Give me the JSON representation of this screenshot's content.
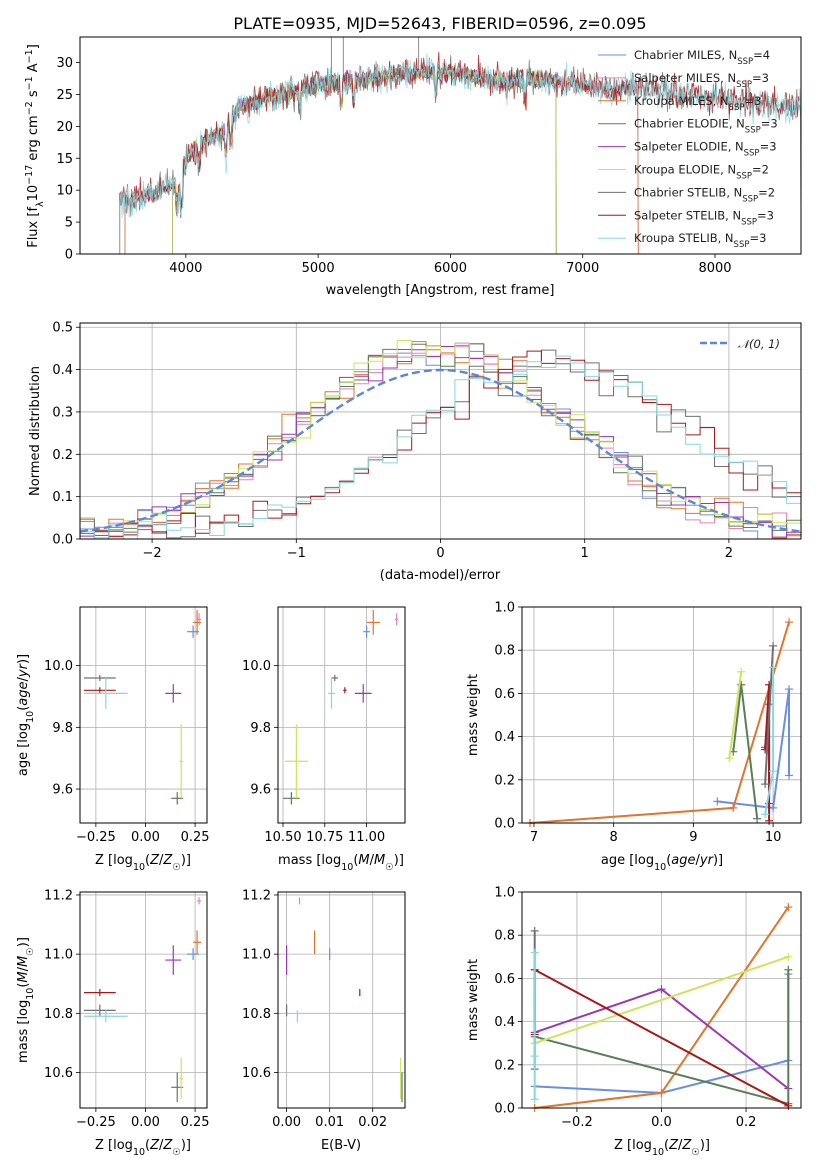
{
  "figure": {
    "title": "PLATE=0935, MJD=52643, FIBERID=0596, z=0.095"
  },
  "colors": {
    "Chabrier MILES": "#6a8fdc",
    "Salpeter MILES": "#e584b9",
    "Kroupa MILES": "#e0752c",
    "Chabrier ELODIE": "#5a7e57",
    "Salpeter ELODIE": "#9b37b0",
    "Kroupa ELODIE": "#cfe35a",
    "Chabrier STELIB": "#707070",
    "Salpeter STELIB": "#a81818",
    "Kroupa STELIB": "#84d8e0"
  },
  "chart_data": [
    {
      "id": "spectrum",
      "type": "line",
      "xlabel": "wavelength [Angstrom, rest frame]",
      "ylabel": "Flux [f_λ 10^-17 erg cm^-2 s^-1 A^-1]",
      "xlim": [
        3200,
        8650
      ],
      "ylim": [
        0,
        34
      ],
      "xticks": [
        "4000",
        "5000",
        "6000",
        "7000",
        "8000"
      ],
      "yticks": [
        "0",
        "5",
        "10",
        "15",
        "20",
        "25",
        "30"
      ],
      "grid": false,
      "legend_position": "upper-right",
      "continuum_knots": {
        "wavelength": [
          3500,
          3700,
          3900,
          3960,
          4000,
          4100,
          4200,
          4300,
          4400,
          4600,
          4800,
          5000,
          5200,
          5400,
          5600,
          5800,
          6000,
          6200,
          6400,
          6600,
          6800,
          7000,
          7200,
          7400,
          7800,
          8200,
          8500
        ],
        "flux": [
          8.5,
          9.0,
          11.0,
          10.0,
          15.0,
          17.0,
          18.5,
          19.0,
          23.0,
          24.5,
          25.5,
          26.5,
          27.0,
          27.5,
          28.0,
          28.5,
          28.5,
          27.5,
          27.0,
          27.5,
          27.0,
          26.5,
          25.5,
          26.0,
          25.0,
          24.0,
          23.0
        ]
      },
      "series": [
        {
          "name": "Chabrier MILES",
          "n_ssp": "4",
          "wave_range": [
            3540,
            7420
          ]
        },
        {
          "name": "Salpeter MILES",
          "n_ssp": "3",
          "wave_range": [
            3540,
            7420
          ]
        },
        {
          "name": "Kroupa MILES",
          "n_ssp": "3",
          "wave_range": [
            3540,
            7420
          ]
        },
        {
          "name": "Chabrier ELODIE",
          "n_ssp": "3",
          "wave_range": [
            3900,
            6800
          ]
        },
        {
          "name": "Salpeter ELODIE",
          "n_ssp": "3",
          "wave_range": [
            3900,
            6800
          ]
        },
        {
          "name": "Kroupa ELODIE",
          "n_ssp": "2",
          "wave_range": [
            3900,
            6800
          ]
        },
        {
          "name": "Chabrier STELIB",
          "n_ssp": "2",
          "wave_range": [
            3500,
            8650
          ]
        },
        {
          "name": "Salpeter STELIB",
          "n_ssp": "3",
          "wave_range": [
            3500,
            8650
          ]
        },
        {
          "name": "Kroupa STELIB",
          "n_ssp": "3",
          "wave_range": [
            3500,
            8650
          ]
        }
      ],
      "legend_entries": [
        {
          "name": "Chabrier MILES",
          "label": "Chabrier MILES, N",
          "sub": "SSP",
          "suffix": "=4"
        },
        {
          "name": "Salpeter MILES",
          "label": "Salpeter MILES, N",
          "sub": "SSP",
          "suffix": "=3"
        },
        {
          "name": "Kroupa MILES",
          "label": "Kroupa MILES, N",
          "sub": "SSP",
          "suffix": "=3"
        },
        {
          "name": "Chabrier ELODIE",
          "label": "Chabrier ELODIE, N",
          "sub": "SSP",
          "suffix": "=3"
        },
        {
          "name": "Salpeter ELODIE",
          "label": "Salpeter ELODIE, N",
          "sub": "SSP",
          "suffix": "=3"
        },
        {
          "name": "Kroupa ELODIE",
          "label": "Kroupa ELODIE, N",
          "sub": "SSP",
          "suffix": "=2"
        },
        {
          "name": "Chabrier STELIB",
          "label": "Chabrier STELIB, N",
          "sub": "SSP",
          "suffix": "=2"
        },
        {
          "name": "Salpeter STELIB",
          "label": "Salpeter STELIB, N",
          "sub": "SSP",
          "suffix": "=3"
        },
        {
          "name": "Kroupa STELIB",
          "label": "Kroupa STELIB, N",
          "sub": "SSP",
          "suffix": "=3"
        }
      ]
    },
    {
      "id": "residuals",
      "type": "histogram",
      "xlabel": "(data-model)/error",
      "ylabel": "Normed distribution",
      "xlim": [
        -2.5,
        2.5
      ],
      "ylim": [
        0,
        0.51
      ],
      "xticks": [
        "−2",
        "−1",
        "0",
        "1",
        "2"
      ],
      "yticks": [
        "0.0",
        "0.1",
        "0.2",
        "0.3",
        "0.4",
        "0.5"
      ],
      "grid": true,
      "legend": "𝒩(0, 1)",
      "bin_width": 0.1,
      "family_A": {
        "members": [
          "Chabrier MILES",
          "Salpeter MILES",
          "Kroupa MILES",
          "Chabrier ELODIE",
          "Salpeter ELODIE",
          "Kroupa ELODIE"
        ],
        "center": -0.02,
        "sigma": 0.92,
        "peak": 0.44
      },
      "family_B": {
        "members": [
          "Chabrier STELIB",
          "Salpeter STELIB",
          "Kroupa STELIB"
        ],
        "center": 0.78,
        "sigma": 0.95,
        "peak": 0.41
      }
    },
    {
      "id": "age_vs_Z",
      "type": "scatter",
      "xlabel": "Z [log10(Z/Z☉)]",
      "ylabel": "age [log10(age/yr)]",
      "xlim": [
        -0.33,
        0.31
      ],
      "ylim": [
        9.49,
        10.19
      ],
      "xticks": [
        "−0.25",
        "0.00",
        "0.25"
      ],
      "yticks": [
        "9.6",
        "9.8",
        "10.0"
      ]
    },
    {
      "id": "age_vs_mass",
      "type": "scatter",
      "xlabel": "mass [log10(M/M☉)]",
      "ylabel": "",
      "xlim": [
        10.47,
        11.23
      ],
      "ylim": [
        9.49,
        10.19
      ],
      "xticks": [
        "10.50",
        "10.75",
        "11.00"
      ],
      "yticks": [
        "9.6",
        "9.8",
        "10.0"
      ]
    },
    {
      "id": "mass_weight_vs_age",
      "type": "line",
      "xlabel": "age [log10(age/yr)]",
      "ylabel": "mass weight",
      "xlim": [
        6.85,
        10.35
      ],
      "ylim": [
        0,
        1.0
      ],
      "xticks": [
        "7",
        "8",
        "9",
        "10"
      ],
      "yticks": [
        "0.0",
        "0.2",
        "0.4",
        "0.6",
        "0.8",
        "1.0"
      ]
    },
    {
      "id": "mass_vs_Z",
      "type": "scatter",
      "xlabel": "Z [log10(Z/Z☉)]",
      "ylabel": "mass [log10(M/M☉)]",
      "xlim": [
        -0.33,
        0.31
      ],
      "ylim": [
        10.48,
        11.21
      ],
      "xticks": [
        "−0.25",
        "0.00",
        "0.25"
      ],
      "yticks": [
        "10.6",
        "10.8",
        "11.0",
        "11.2"
      ]
    },
    {
      "id": "mass_vs_EBV",
      "type": "scatter",
      "xlabel": "E(B-V)",
      "ylabel": "",
      "xlim": [
        -0.002,
        0.0275
      ],
      "ylim": [
        10.48,
        11.21
      ],
      "xticks": [
        "0.00",
        "0.01",
        "0.02"
      ],
      "yticks": [
        "10.6",
        "10.8",
        "11.0",
        "11.2"
      ]
    },
    {
      "id": "mass_weight_vs_Z",
      "type": "line",
      "xlabel": "Z [log10(Z/Z☉)]",
      "ylabel": "mass weight",
      "xlim": [
        -0.33,
        0.33
      ],
      "ylim": [
        0,
        1.0
      ],
      "xticks": [
        "−0.2",
        "0.0",
        "0.2"
      ],
      "yticks": [
        "0.0",
        "0.2",
        "0.4",
        "0.6",
        "0.8",
        "1.0"
      ]
    }
  ],
  "models": [
    {
      "name": "Chabrier MILES",
      "Z": [
        0.24,
        0.03
      ],
      "age": [
        10.11,
        0.02
      ],
      "mass": [
        11.0,
        0.02
      ],
      "ebv": 0.01
    },
    {
      "name": "Salpeter MILES",
      "Z": [
        0.27,
        0.01
      ],
      "age": [
        10.15,
        0.02
      ],
      "mass": [
        11.18,
        0.01
      ],
      "ebv": 0.003
    },
    {
      "name": "Kroupa MILES",
      "Z": [
        0.26,
        0.02
      ],
      "age": [
        10.14,
        0.04
      ],
      "mass": [
        11.04,
        0.04
      ],
      "ebv": 0.0065
    },
    {
      "name": "Chabrier ELODIE",
      "Z": [
        0.16,
        0.03
      ],
      "age": [
        9.57,
        0.02
      ],
      "mass": [
        10.55,
        0.05
      ],
      "ebv": 0.0268
    },
    {
      "name": "Salpeter ELODIE",
      "Z": [
        0.14,
        0.04
      ],
      "age": [
        9.91,
        0.03
      ],
      "mass": [
        10.98,
        0.05
      ],
      "ebv": 0.0
    },
    {
      "name": "Kroupa ELODIE",
      "Z": [
        0.18,
        0.01
      ],
      "age": [
        9.69,
        0.12
      ],
      "mass": [
        10.58,
        0.07
      ],
      "ebv": 0.0265
    },
    {
      "name": "Chabrier STELIB",
      "Z": [
        -0.23,
        0.08
      ],
      "age": [
        9.96,
        0.01
      ],
      "mass": [
        10.81,
        0.02
      ],
      "ebv": 0.0
    },
    {
      "name": "Salpeter STELIB",
      "Z": [
        -0.23,
        0.08
      ],
      "age": [
        9.92,
        0.01
      ],
      "mass": [
        10.87,
        0.01
      ],
      "ebv": 0.017
    },
    {
      "name": "Kroupa STELIB",
      "Z": [
        -0.2,
        0.11
      ],
      "age": [
        9.91,
        0.05
      ],
      "mass": [
        10.79,
        0.02
      ],
      "ebv": 0.0025
    }
  ],
  "ssp_components": [
    {
      "name": "Chabrier MILES",
      "age": [
        9.3,
        10.0,
        10.2,
        10.2
      ],
      "Z": [
        -0.3,
        0.0,
        0.3,
        0.3
      ],
      "w": [
        0.1,
        0.07,
        0.62,
        0.22
      ]
    },
    {
      "name": "Kroupa MILES",
      "age": [
        6.95,
        9.5,
        10.2
      ],
      "Z": [
        -0.3,
        0.0,
        0.3
      ],
      "w": [
        0.0,
        0.07,
        0.93
      ]
    },
    {
      "name": "Salpeter ELODIE",
      "age": [
        9.9,
        9.95,
        9.95
      ],
      "Z": [
        -0.3,
        0.0,
        0.3
      ],
      "w": [
        0.35,
        0.55,
        0.09
      ]
    },
    {
      "name": "Chabrier ELODIE",
      "age": [
        9.5,
        9.6,
        9.8
      ],
      "Z": [
        -0.3,
        0.3,
        0.3
      ],
      "w": [
        0.33,
        0.64,
        0.02
      ]
    },
    {
      "name": "Kroupa ELODIE",
      "age": [
        9.45,
        9.6
      ],
      "Z": [
        -0.3,
        0.3
      ],
      "w": [
        0.3,
        0.7
      ]
    },
    {
      "name": "Salpeter STELIB",
      "age": [
        9.9,
        9.95,
        9.95
      ],
      "Z": [
        -0.3,
        -0.3,
        0.3
      ],
      "w": [
        0.34,
        0.64,
        0.01
      ]
    },
    {
      "name": "Chabrier STELIB",
      "age": [
        9.9,
        10.0
      ],
      "Z": [
        -0.3,
        -0.3
      ],
      "w": [
        0.18,
        0.82
      ]
    },
    {
      "name": "Kroupa STELIB",
      "age": [
        9.9,
        10.0,
        10.0
      ],
      "Z": [
        -0.3,
        -0.3,
        -0.3
      ],
      "w": [
        0.04,
        0.24,
        0.72
      ]
    }
  ]
}
